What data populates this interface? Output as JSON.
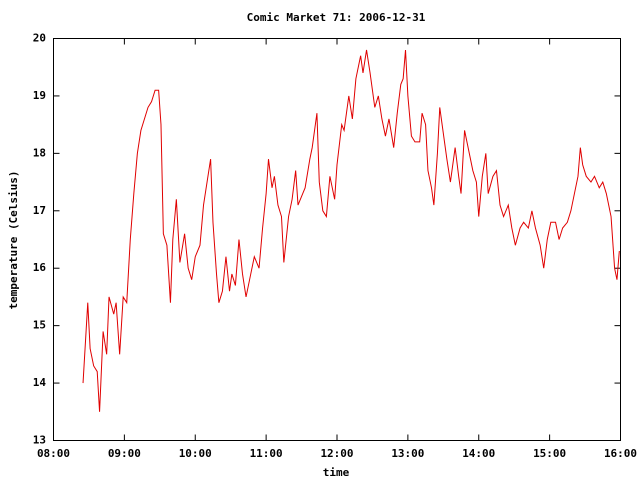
{
  "chart_data": {
    "type": "line",
    "title": "Comic Market 71: 2006-12-31",
    "xlabel": "time",
    "ylabel": "temperature (Celsius)",
    "color": "#e00000",
    "xlim": [
      "08:00",
      "16:00"
    ],
    "xticks": [
      "08:00",
      "09:00",
      "10:00",
      "11:00",
      "12:00",
      "13:00",
      "14:00",
      "15:00",
      "16:00"
    ],
    "ylim": [
      13,
      20
    ],
    "yticks": [
      13,
      14,
      15,
      16,
      17,
      18,
      19,
      20
    ],
    "grid": false,
    "x": [
      "08:25",
      "08:29",
      "08:31",
      "08:34",
      "08:37",
      "08:39",
      "08:42",
      "08:45",
      "08:47",
      "08:51",
      "08:53",
      "08:56",
      "08:59",
      "09:02",
      "09:05",
      "09:08",
      "09:11",
      "09:14",
      "09:17",
      "09:20",
      "09:23",
      "09:26",
      "09:29",
      "09:31",
      "09:33",
      "09:36",
      "09:39",
      "09:41",
      "09:44",
      "09:47",
      "09:51",
      "09:54",
      "09:57",
      "10:00",
      "10:04",
      "10:07",
      "10:10",
      "10:13",
      "10:15",
      "10:18",
      "10:20",
      "10:23",
      "10:26",
      "10:29",
      "10:31",
      "10:34",
      "10:37",
      "10:40",
      "10:43",
      "10:47",
      "10:50",
      "10:54",
      "10:57",
      "11:00",
      "11:02",
      "11:05",
      "11:07",
      "11:10",
      "11:13",
      "11:15",
      "11:19",
      "11:22",
      "11:25",
      "11:27",
      "11:31",
      "11:33",
      "11:37",
      "11:39",
      "11:43",
      "11:45",
      "11:48",
      "11:51",
      "11:54",
      "11:58",
      "12:00",
      "12:04",
      "12:06",
      "12:10",
      "12:13",
      "12:16",
      "12:20",
      "12:22",
      "12:25",
      "12:28",
      "12:32",
      "12:35",
      "12:38",
      "12:41",
      "12:44",
      "12:48",
      "12:51",
      "12:54",
      "12:56",
      "12:58",
      "13:00",
      "13:03",
      "13:06",
      "13:10",
      "13:12",
      "13:15",
      "13:17",
      "13:20",
      "13:22",
      "13:25",
      "13:27",
      "13:31",
      "13:33",
      "13:36",
      "13:40",
      "13:43",
      "13:45",
      "13:48",
      "13:51",
      "13:55",
      "13:58",
      "14:00",
      "14:03",
      "14:06",
      "14:08",
      "14:12",
      "14:15",
      "14:18",
      "14:21",
      "14:25",
      "14:28",
      "14:31",
      "14:35",
      "14:38",
      "14:42",
      "14:45",
      "14:48",
      "14:52",
      "14:55",
      "14:58",
      "15:01",
      "15:05",
      "15:08",
      "15:11",
      "15:15",
      "15:18",
      "15:21",
      "15:24",
      "15:26",
      "15:28",
      "15:31",
      "15:35",
      "15:38",
      "15:42",
      "15:45",
      "15:48",
      "15:52",
      "15:55",
      "15:57",
      "15:59"
    ],
    "values": [
      14.0,
      15.4,
      14.6,
      14.3,
      14.2,
      13.5,
      14.9,
      14.5,
      15.5,
      15.2,
      15.4,
      14.5,
      15.5,
      15.4,
      16.5,
      17.3,
      18.0,
      18.4,
      18.6,
      18.8,
      18.9,
      19.1,
      19.1,
      18.5,
      16.6,
      16.4,
      15.4,
      16.5,
      17.2,
      16.1,
      16.6,
      16.0,
      15.8,
      16.2,
      16.4,
      17.1,
      17.5,
      17.9,
      16.8,
      15.9,
      15.4,
      15.6,
      16.2,
      15.6,
      15.9,
      15.7,
      16.5,
      15.9,
      15.5,
      15.9,
      16.2,
      16.0,
      16.7,
      17.3,
      17.9,
      17.4,
      17.6,
      17.1,
      16.9,
      16.1,
      16.9,
      17.2,
      17.7,
      17.1,
      17.3,
      17.4,
      17.9,
      18.1,
      18.7,
      17.5,
      17.0,
      16.9,
      17.6,
      17.2,
      17.8,
      18.5,
      18.4,
      19.0,
      18.6,
      19.3,
      19.7,
      19.4,
      19.8,
      19.4,
      18.8,
      19.0,
      18.6,
      18.3,
      18.6,
      18.1,
      18.7,
      19.2,
      19.3,
      19.8,
      19.0,
      18.3,
      18.2,
      18.2,
      18.7,
      18.5,
      17.7,
      17.4,
      17.1,
      18.0,
      18.8,
      18.2,
      17.9,
      17.5,
      18.1,
      17.6,
      17.3,
      18.4,
      18.1,
      17.7,
      17.5,
      16.9,
      17.6,
      18.0,
      17.3,
      17.6,
      17.7,
      17.1,
      16.9,
      17.1,
      16.7,
      16.4,
      16.7,
      16.8,
      16.7,
      17.0,
      16.7,
      16.4,
      16.0,
      16.5,
      16.8,
      16.8,
      16.5,
      16.7,
      16.8,
      17.0,
      17.3,
      17.6,
      18.1,
      17.8,
      17.6,
      17.5,
      17.6,
      17.4,
      17.5,
      17.3,
      16.9,
      16.0,
      15.8,
      16.3
    ]
  }
}
